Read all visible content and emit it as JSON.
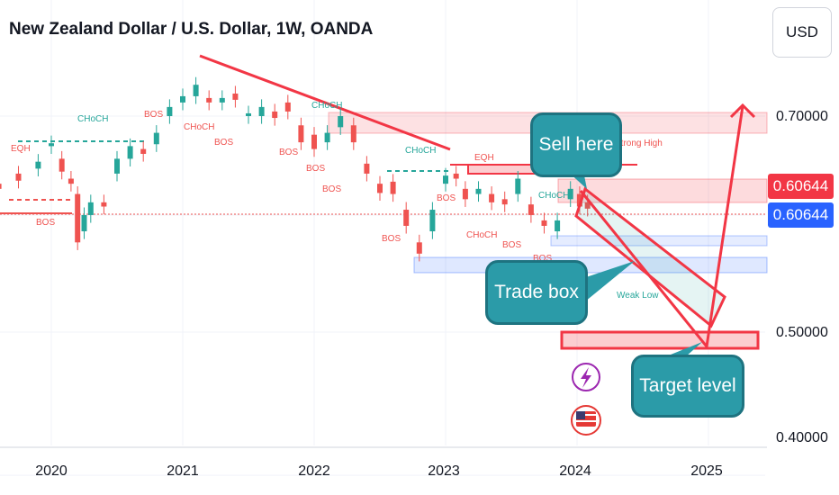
{
  "title": "New Zealand Dollar / U.S. Dollar, 1W, OANDA",
  "currency_button": "USD",
  "price_labels": {
    "last_price": "0.60644",
    "current_price": "0.60644"
  },
  "colors": {
    "up": "#26a69a",
    "down": "#ef5350",
    "accent_red": "#f23645",
    "accent_blue": "#2962ff",
    "callout": "#2b9ba8"
  },
  "callouts": {
    "sell": "Sell here",
    "trade": "Trade box",
    "target": "Target level"
  },
  "icons": [
    "lightning-icon",
    "us-flag-icon"
  ],
  "chart_data": {
    "type": "candlestick",
    "x_axis_labels": [
      "2020",
      "2021",
      "2022",
      "2023",
      "2024",
      "2025"
    ],
    "y_axis_labels": [
      "0.70000",
      "0.50000",
      "0.40000"
    ],
    "y_scale": "log",
    "last_value": 0.60644,
    "grid": true,
    "series": [
      {
        "values": [
          [
            2019.6,
            0.63,
            0.625
          ],
          [
            2019.75,
            0.64,
            0.633
          ],
          [
            2019.9,
            0.645,
            0.652
          ],
          [
            2020.0,
            0.668,
            0.671
          ],
          [
            2020.08,
            0.655,
            0.642
          ],
          [
            2020.15,
            0.635,
            0.63
          ],
          [
            2020.2,
            0.62,
            0.575
          ],
          [
            2020.25,
            0.585,
            0.6
          ],
          [
            2020.3,
            0.6,
            0.612
          ],
          [
            2020.4,
            0.612,
            0.608
          ],
          [
            2020.5,
            0.64,
            0.655
          ],
          [
            2020.6,
            0.655,
            0.668
          ],
          [
            2020.7,
            0.665,
            0.66
          ],
          [
            2020.8,
            0.67,
            0.682
          ],
          [
            2020.9,
            0.7,
            0.71
          ],
          [
            2021.0,
            0.715,
            0.722
          ],
          [
            2021.1,
            0.722,
            0.735
          ],
          [
            2021.2,
            0.72,
            0.715
          ],
          [
            2021.3,
            0.715,
            0.72
          ],
          [
            2021.4,
            0.725,
            0.718
          ],
          [
            2021.5,
            0.7,
            0.703
          ],
          [
            2021.6,
            0.7,
            0.71
          ],
          [
            2021.7,
            0.705,
            0.698
          ],
          [
            2021.8,
            0.715,
            0.705
          ],
          [
            2021.9,
            0.69,
            0.672
          ],
          [
            2022.0,
            0.68,
            0.665
          ],
          [
            2022.1,
            0.672,
            0.682
          ],
          [
            2022.2,
            0.688,
            0.7
          ],
          [
            2022.3,
            0.69,
            0.672
          ],
          [
            2022.4,
            0.65,
            0.64
          ],
          [
            2022.5,
            0.63,
            0.621
          ],
          [
            2022.6,
            0.632,
            0.62
          ],
          [
            2022.7,
            0.605,
            0.59
          ],
          [
            2022.8,
            0.575,
            0.565
          ],
          [
            2022.9,
            0.585,
            0.605
          ],
          [
            2023.0,
            0.63,
            0.638
          ],
          [
            2023.08,
            0.64,
            0.635
          ],
          [
            2023.15,
            0.625,
            0.615
          ],
          [
            2023.25,
            0.62,
            0.625
          ],
          [
            2023.35,
            0.62,
            0.612
          ],
          [
            2023.45,
            0.615,
            0.61
          ],
          [
            2023.55,
            0.62,
            0.635
          ],
          [
            2023.65,
            0.61,
            0.6
          ],
          [
            2023.75,
            0.595,
            0.59
          ],
          [
            2023.85,
            0.585,
            0.595
          ],
          [
            2023.95,
            0.615,
            0.625
          ],
          [
            2024.02,
            0.62,
            0.608
          ],
          [
            2024.08,
            0.612,
            0.606
          ]
        ]
      }
    ],
    "annotations": [
      "EQH",
      "CHoCH",
      "BOS",
      "BOS",
      "CHoCH",
      "BOS",
      "CHoCH",
      "BOS",
      "BOS",
      "CHoCH",
      "BOS",
      "CHoCH",
      "BOS",
      "BOS",
      "EQH",
      "CHoCH",
      "BOS",
      "CHoCH",
      "BOS",
      "Strong High",
      "Weak Low"
    ]
  }
}
